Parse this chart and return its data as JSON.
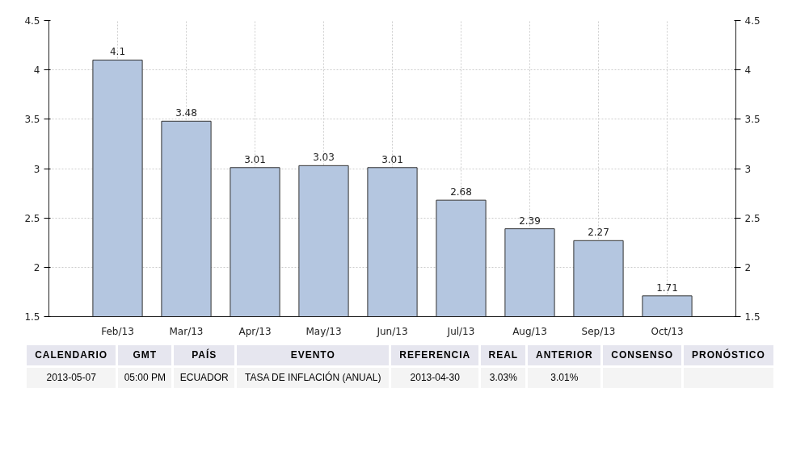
{
  "chart_data": {
    "type": "bar",
    "categories": [
      "Feb/13",
      "Mar/13",
      "Apr/13",
      "May/13",
      "Jun/13",
      "Jul/13",
      "Aug/13",
      "Sep/13",
      "Oct/13"
    ],
    "values": [
      4.1,
      3.48,
      3.01,
      3.03,
      3.01,
      2.68,
      2.39,
      2.27,
      1.71
    ],
    "color": "#b4c6e0",
    "ylim": [
      1.5,
      4.5
    ],
    "yticks": [
      1.5,
      2,
      2.5,
      3,
      3.5,
      4,
      4.5
    ],
    "y2lim": [
      1.5,
      4.5
    ],
    "y2ticks": [
      1.5,
      2,
      2.5,
      3,
      3.5,
      4,
      4.5
    ],
    "grid": true,
    "data_labels": true,
    "annotations": [
      "CALENDARIO",
      "GMT",
      "PAÍS",
      "EVENTO",
      "REFERENCIA",
      "REAL",
      "ANTERIOR",
      "CONSENSO",
      "PRONÓSTICO",
      "2013-05-07",
      "05:00 PM",
      "ECUADOR",
      "TASA DE INFLACIÓN (ANUAL)",
      "2013-04-30",
      "3.03%",
      "3.01%"
    ]
  }
}
